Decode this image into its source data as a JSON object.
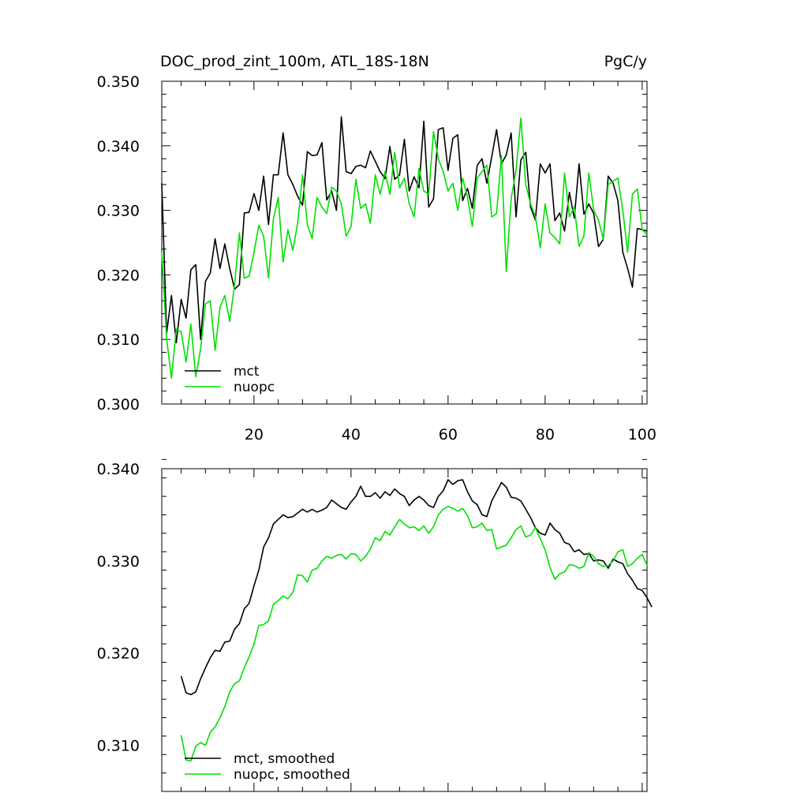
{
  "chart_data": [
    {
      "type": "line",
      "title": "DOC_prod_zint_100m, ATL_18S-18N",
      "units": "PgC/y",
      "xlabel": "",
      "ylabel": "",
      "xlim": [
        1,
        101
      ],
      "ylim": [
        0.3,
        0.35
      ],
      "xticks": [
        20,
        40,
        60,
        80,
        100
      ],
      "xtick_labels": [
        "20",
        "40",
        "60",
        "80",
        "100"
      ],
      "yticks": [
        0.3,
        0.31,
        0.32,
        0.33,
        0.34,
        0.35
      ],
      "ytick_labels": [
        "0.300",
        "0.310",
        "0.320",
        "0.330",
        "0.340",
        "0.350"
      ],
      "legend_position": "bottom-left",
      "grid": false,
      "series": [
        {
          "name": "mct",
          "color": "#000000",
          "x_start": 1,
          "values": [
            0.3342,
            0.311,
            0.3168,
            0.3095,
            0.3162,
            0.3133,
            0.3208,
            0.3216,
            0.31,
            0.319,
            0.3203,
            0.3256,
            0.321,
            0.3248,
            0.321,
            0.3178,
            0.3185,
            0.3296,
            0.3297,
            0.3326,
            0.33,
            0.3353,
            0.3278,
            0.3355,
            0.3355,
            0.342,
            0.3355,
            0.334,
            0.3322,
            0.3308,
            0.3391,
            0.3385,
            0.3386,
            0.3405,
            0.3316,
            0.333,
            0.33,
            0.3445,
            0.336,
            0.3357,
            0.3368,
            0.337,
            0.3366,
            0.3392,
            0.3376,
            0.336,
            0.3349,
            0.3399,
            0.3348,
            0.3355,
            0.341,
            0.333,
            0.3352,
            0.3335,
            0.3438,
            0.3305,
            0.3318,
            0.3425,
            0.3428,
            0.3362,
            0.3412,
            0.3417,
            0.3315,
            0.3334,
            0.3303,
            0.337,
            0.338,
            0.3342,
            0.3383,
            0.3425,
            0.3372,
            0.3386,
            0.342,
            0.329,
            0.3378,
            0.339,
            0.3305,
            0.3285,
            0.3372,
            0.3358,
            0.3372,
            0.3284,
            0.3296,
            0.3268,
            0.3328,
            0.3288,
            0.3372,
            0.3294,
            0.331,
            0.3295,
            0.3244,
            0.3255,
            0.3353,
            0.3342,
            0.3315,
            0.3235,
            0.321,
            0.3181,
            0.3272,
            0.327,
            0.3268
          ]
        },
        {
          "name": "nuopc",
          "color": "#00e000",
          "x_start": 1,
          "values": [
            0.3235,
            0.31,
            0.304,
            0.3116,
            0.3112,
            0.3065,
            0.3124,
            0.3042,
            0.3085,
            0.3155,
            0.316,
            0.3083,
            0.315,
            0.3168,
            0.3128,
            0.3185,
            0.3265,
            0.3195,
            0.3198,
            0.3235,
            0.3277,
            0.326,
            0.3195,
            0.3287,
            0.332,
            0.322,
            0.327,
            0.3238,
            0.328,
            0.3355,
            0.3278,
            0.3256,
            0.332,
            0.3305,
            0.3295,
            0.3336,
            0.333,
            0.331,
            0.326,
            0.3275,
            0.3348,
            0.3303,
            0.331,
            0.328,
            0.3355,
            0.3325,
            0.336,
            0.3325,
            0.339,
            0.3335,
            0.335,
            0.331,
            0.329,
            0.3365,
            0.333,
            0.3325,
            0.3422,
            0.338,
            0.336,
            0.333,
            0.3342,
            0.33,
            0.335,
            0.332,
            0.3275,
            0.335,
            0.336,
            0.337,
            0.329,
            0.3295,
            0.3385,
            0.3205,
            0.3318,
            0.3362,
            0.3443,
            0.334,
            0.331,
            0.329,
            0.3242,
            0.331,
            0.3265,
            0.3258,
            0.3248,
            0.3358,
            0.329,
            0.3305,
            0.3244,
            0.326,
            0.3358,
            0.33,
            0.3285,
            0.3255,
            0.334,
            0.3345,
            0.335,
            0.33,
            0.3235,
            0.3325,
            0.3333,
            0.327,
            0.3262
          ]
        }
      ]
    },
    {
      "type": "line",
      "title": "",
      "xlabel": "",
      "ylabel": "",
      "xlim": [
        1,
        101
      ],
      "ylim": [
        0.305,
        0.34
      ],
      "xticks": [
        20,
        40,
        60,
        80,
        100
      ],
      "xtick_labels": [],
      "yticks": [
        0.31,
        0.32,
        0.33,
        0.34
      ],
      "ytick_labels": [
        "0.310",
        "0.320",
        "0.330",
        "0.340"
      ],
      "legend_position": "bottom-left",
      "grid": false,
      "series": [
        {
          "name": "mct, smoothed",
          "color": "#000000",
          "x_start": 5,
          "values": [
            0.3175,
            0.3157,
            0.3155,
            0.3158,
            0.3172,
            0.3184,
            0.3195,
            0.3203,
            0.3202,
            0.3212,
            0.3213,
            0.3226,
            0.3232,
            0.3248,
            0.3254,
            0.3273,
            0.329,
            0.3315,
            0.3325,
            0.334,
            0.3345,
            0.335,
            0.3347,
            0.3348,
            0.3352,
            0.3356,
            0.3353,
            0.3356,
            0.3353,
            0.3355,
            0.3358,
            0.3366,
            0.3362,
            0.3358,
            0.3356,
            0.3364,
            0.337,
            0.3381,
            0.337,
            0.337,
            0.3374,
            0.3368,
            0.3375,
            0.3371,
            0.3378,
            0.3373,
            0.337,
            0.336,
            0.3366,
            0.337,
            0.3366,
            0.336,
            0.3358,
            0.337,
            0.3376,
            0.3388,
            0.3383,
            0.3387,
            0.3388,
            0.3375,
            0.3365,
            0.3361,
            0.335,
            0.3348,
            0.3365,
            0.3375,
            0.3385,
            0.338,
            0.3369,
            0.3368,
            0.3365,
            0.3356,
            0.3347,
            0.3336,
            0.333,
            0.3328,
            0.3341,
            0.3334,
            0.333,
            0.332,
            0.3318,
            0.331,
            0.3312,
            0.3307,
            0.3308,
            0.33,
            0.3301,
            0.33,
            0.3292,
            0.3302,
            0.3299,
            0.3297,
            0.3286,
            0.3279,
            0.327,
            0.3268,
            0.326,
            0.325
          ]
        },
        {
          "name": "nuopc, smoothed",
          "color": "#00e000",
          "x_start": 5,
          "values": [
            0.3111,
            0.3084,
            0.3083,
            0.3099,
            0.3103,
            0.31,
            0.3114,
            0.312,
            0.313,
            0.3142,
            0.3158,
            0.3167,
            0.317,
            0.3184,
            0.3196,
            0.321,
            0.323,
            0.3231,
            0.3235,
            0.3253,
            0.3257,
            0.3262,
            0.3259,
            0.3266,
            0.3285,
            0.3284,
            0.3277,
            0.329,
            0.3292,
            0.33,
            0.3305,
            0.3303,
            0.3306,
            0.3307,
            0.3302,
            0.3308,
            0.3307,
            0.33,
            0.3305,
            0.3313,
            0.3325,
            0.3322,
            0.3332,
            0.3328,
            0.3337,
            0.3345,
            0.334,
            0.3336,
            0.3337,
            0.3333,
            0.3338,
            0.333,
            0.3337,
            0.335,
            0.3356,
            0.3359,
            0.3357,
            0.3354,
            0.3357,
            0.3349,
            0.3336,
            0.3337,
            0.3341,
            0.3333,
            0.3334,
            0.3313,
            0.3315,
            0.3317,
            0.3325,
            0.3334,
            0.3338,
            0.3326,
            0.3328,
            0.3336,
            0.3324,
            0.3312,
            0.3293,
            0.328,
            0.3286,
            0.3288,
            0.3296,
            0.3295,
            0.3292,
            0.3294,
            0.3309,
            0.3305,
            0.3297,
            0.3294,
            0.3295,
            0.33,
            0.331,
            0.3312,
            0.3294,
            0.3297,
            0.3303,
            0.3307,
            0.3295
          ]
        }
      ]
    }
  ]
}
